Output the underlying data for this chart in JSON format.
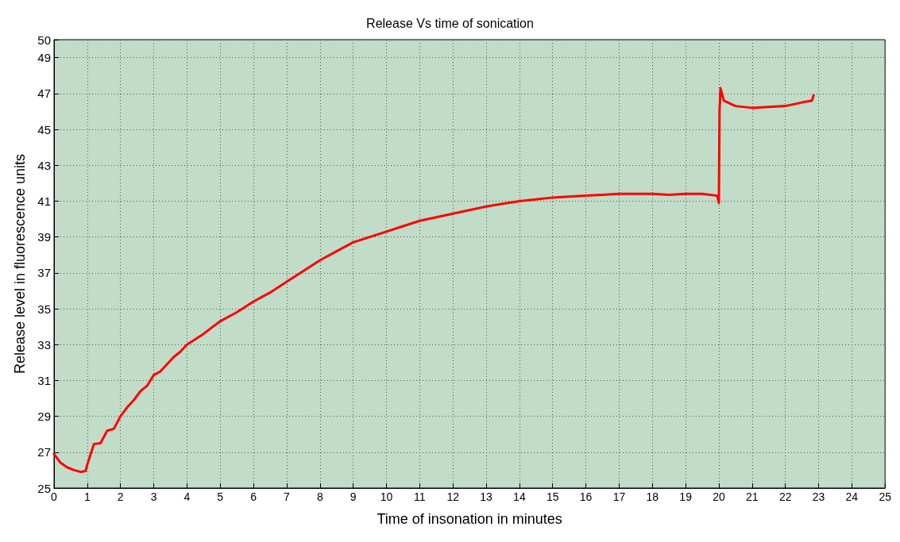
{
  "chart_data": {
    "type": "line",
    "title": "Release Vs time of sonication",
    "xlabel": "Time of insonation in minutes",
    "ylabel": "Release level in fluorescence units",
    "xlim": [
      0,
      25
    ],
    "xticks": [
      0,
      1,
      2,
      3,
      4,
      5,
      6,
      7,
      8,
      9,
      10,
      11,
      12,
      13,
      14,
      15,
      16,
      17,
      18,
      19,
      20,
      21,
      22,
      23,
      24,
      25
    ],
    "ylim": [
      25,
      50
    ],
    "yticks": [
      25,
      27,
      29,
      31,
      33,
      35,
      37,
      39,
      41,
      43,
      45,
      47,
      49,
      50
    ],
    "grid": true,
    "marker": "none",
    "line_style": "solid",
    "series": [
      {
        "color": "#ff0000",
        "x": [
          0,
          0.2,
          0.4,
          0.6,
          0.8,
          0.95,
          1.0,
          1.2,
          1.4,
          1.6,
          1.8,
          2.0,
          2.2,
          2.4,
          2.6,
          2.8,
          3.0,
          3.2,
          3.4,
          3.6,
          3.8,
          4.0,
          4.5,
          5,
          5.5,
          6,
          6.5,
          7,
          7.5,
          8,
          8.5,
          9,
          9.5,
          10,
          10.5,
          11,
          11.5,
          12,
          12.5,
          13,
          13.5,
          14,
          14.5,
          15,
          15.5,
          16,
          16.5,
          17,
          17.5,
          18,
          18.5,
          19,
          19.5,
          19.95,
          20.0,
          20.02,
          20.05,
          20.15,
          20.5,
          21,
          21.5,
          22,
          22.5,
          22.8,
          22.85
        ],
        "values": [
          26.9,
          26.4,
          26.15,
          26.0,
          25.9,
          25.95,
          26.3,
          27.45,
          27.5,
          28.2,
          28.3,
          29.0,
          29.5,
          29.9,
          30.4,
          30.7,
          31.3,
          31.5,
          31.9,
          32.3,
          32.6,
          33.0,
          33.6,
          34.3,
          34.8,
          35.4,
          35.9,
          36.5,
          37.1,
          37.7,
          38.2,
          38.7,
          39.0,
          39.3,
          39.6,
          39.9,
          40.1,
          40.3,
          40.5,
          40.7,
          40.85,
          41.0,
          41.1,
          41.2,
          41.25,
          41.3,
          41.35,
          41.4,
          41.4,
          41.4,
          41.35,
          41.4,
          41.4,
          41.3,
          40.9,
          46.0,
          47.3,
          46.6,
          46.3,
          46.2,
          46.25,
          46.3,
          46.5,
          46.6,
          46.9
        ]
      }
    ]
  }
}
